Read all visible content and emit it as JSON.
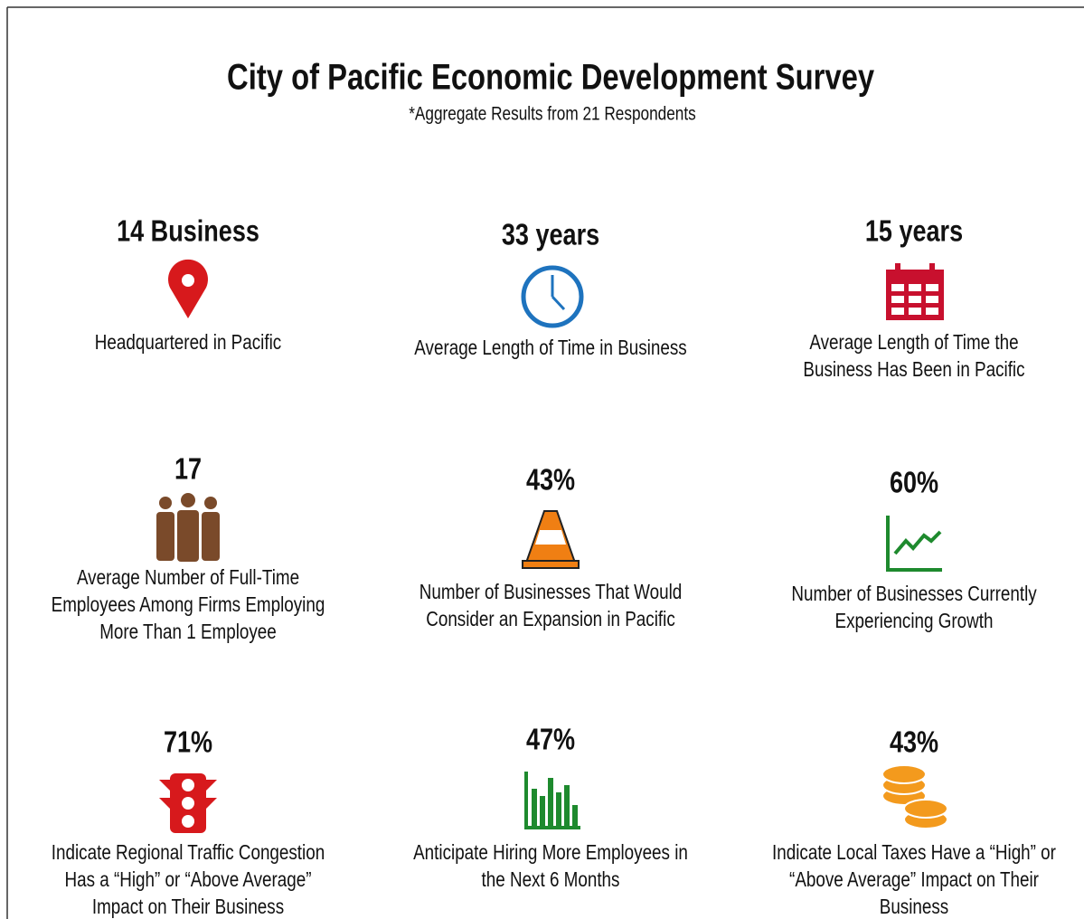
{
  "title": "City of Pacific Economic Development Survey",
  "subtitle": "*Aggregate Results from 21 Respondents",
  "stats": [
    {
      "value": "14 Business",
      "lines": [
        "Headquartered in Pacific"
      ]
    },
    {
      "value": "33 years",
      "lines": [
        "Average Length of Time in Business"
      ]
    },
    {
      "value": "15 years",
      "lines": [
        "Average Length of Time the",
        "Business Has Been in Pacific"
      ]
    },
    {
      "value": "17",
      "lines": [
        "Average Number of Full-Time",
        "Employees Among Firms Employing",
        "More Than 1 Employee"
      ]
    },
    {
      "value": "43%",
      "lines": [
        "Number of Businesses That Would",
        "Consider an Expansion in Pacific"
      ]
    },
    {
      "value": "60%",
      "lines": [
        "Number of Businesses Currently",
        "Experiencing Growth"
      ]
    },
    {
      "value": "71%",
      "lines": [
        "Indicate Regional Traffic Congestion",
        "Has a “High” or “Above Average”",
        "Impact on Their Business"
      ]
    },
    {
      "value": "47%",
      "lines": [
        "Anticipate Hiring More Employees in",
        "the Next 6 Months"
      ]
    },
    {
      "value": "43%",
      "lines": [
        "Indicate Local Taxes Have a “High” or",
        "“Above Average” Impact on Their",
        "Business"
      ]
    }
  ]
}
